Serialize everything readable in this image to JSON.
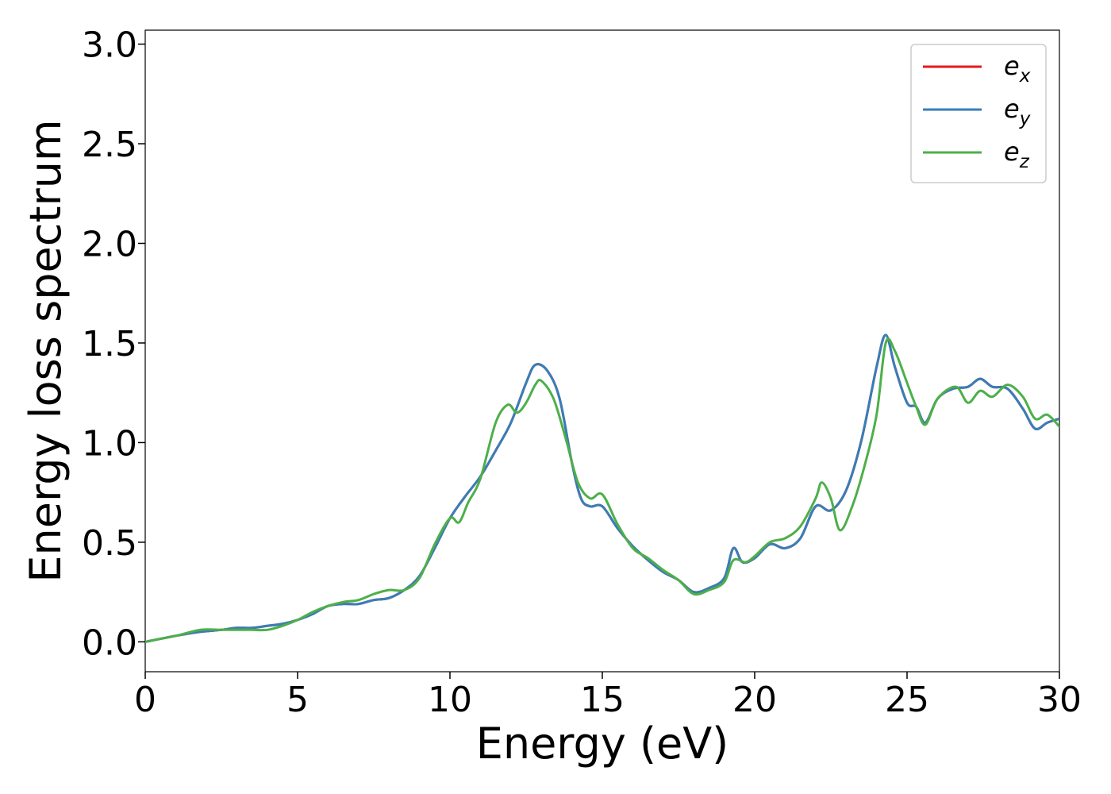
{
  "chart_data": {
    "type": "line",
    "xlabel": "Energy (eV)",
    "ylabel": "Energy loss spectrum",
    "xlim": [
      0,
      30
    ],
    "ylim": [
      -0.15,
      3.07
    ],
    "xticks": [
      0,
      5,
      10,
      15,
      20,
      25,
      30
    ],
    "xtick_labels": [
      "0",
      "5",
      "10",
      "15",
      "20",
      "25",
      "30"
    ],
    "yticks": [
      0.0,
      0.5,
      1.0,
      1.5,
      2.0,
      2.5,
      3.0
    ],
    "ytick_labels": [
      "0.0",
      "0.5",
      "1.0",
      "1.5",
      "2.0",
      "2.5",
      "3.0"
    ],
    "grid": false,
    "legend_position": "top-right",
    "series": [
      {
        "name": "e",
        "subscript": "x",
        "color": "#e41a1c",
        "x": [
          0,
          1,
          1.8,
          2.5,
          3,
          3.5,
          4,
          4.5,
          5,
          5.5,
          6,
          6.5,
          7,
          7.5,
          8,
          8.5,
          9,
          9.5,
          10,
          10.5,
          11,
          11.5,
          12,
          12.5,
          12.8,
          13.2,
          13.6,
          14,
          14.3,
          14.6,
          15,
          15.5,
          16,
          16.5,
          17,
          17.5,
          18,
          18.5,
          19,
          19.3,
          19.6,
          20,
          20.5,
          21,
          21.5,
          22,
          22.5,
          23,
          23.5,
          24,
          24.3,
          24.6,
          25,
          25.3,
          25.6,
          26,
          26.5,
          27,
          27.4,
          27.8,
          28.3,
          28.8,
          29.2,
          29.6,
          30
        ],
        "y": [
          0.0,
          0.03,
          0.05,
          0.06,
          0.07,
          0.07,
          0.08,
          0.09,
          0.11,
          0.14,
          0.18,
          0.19,
          0.19,
          0.21,
          0.22,
          0.26,
          0.33,
          0.47,
          0.62,
          0.73,
          0.83,
          0.96,
          1.1,
          1.3,
          1.39,
          1.36,
          1.22,
          0.9,
          0.72,
          0.68,
          0.68,
          0.57,
          0.48,
          0.41,
          0.35,
          0.31,
          0.25,
          0.27,
          0.32,
          0.47,
          0.4,
          0.42,
          0.49,
          0.47,
          0.52,
          0.68,
          0.66,
          0.76,
          1.01,
          1.38,
          1.54,
          1.38,
          1.2,
          1.18,
          1.1,
          1.22,
          1.27,
          1.28,
          1.32,
          1.28,
          1.27,
          1.17,
          1.07,
          1.1,
          1.12
        ]
      },
      {
        "name": "e",
        "subscript": "y",
        "color": "#377eb8",
        "x": [
          0,
          1,
          1.8,
          2.5,
          3,
          3.5,
          4,
          4.5,
          5,
          5.5,
          6,
          6.5,
          7,
          7.5,
          8,
          8.5,
          9,
          9.5,
          10,
          10.5,
          11,
          11.5,
          12,
          12.5,
          12.8,
          13.2,
          13.6,
          14,
          14.3,
          14.6,
          15,
          15.5,
          16,
          16.5,
          17,
          17.5,
          18,
          18.5,
          19,
          19.3,
          19.6,
          20,
          20.5,
          21,
          21.5,
          22,
          22.5,
          23,
          23.5,
          24,
          24.3,
          24.6,
          25,
          25.3,
          25.6,
          26,
          26.5,
          27,
          27.4,
          27.8,
          28.3,
          28.8,
          29.2,
          29.6,
          30
        ],
        "y": [
          0.0,
          0.03,
          0.05,
          0.06,
          0.07,
          0.07,
          0.08,
          0.09,
          0.11,
          0.14,
          0.18,
          0.19,
          0.19,
          0.21,
          0.22,
          0.26,
          0.33,
          0.47,
          0.62,
          0.73,
          0.83,
          0.96,
          1.1,
          1.3,
          1.39,
          1.36,
          1.22,
          0.9,
          0.72,
          0.68,
          0.68,
          0.57,
          0.48,
          0.41,
          0.35,
          0.31,
          0.25,
          0.27,
          0.32,
          0.47,
          0.4,
          0.42,
          0.49,
          0.47,
          0.52,
          0.68,
          0.66,
          0.76,
          1.01,
          1.38,
          1.54,
          1.38,
          1.2,
          1.18,
          1.1,
          1.22,
          1.27,
          1.28,
          1.32,
          1.28,
          1.27,
          1.17,
          1.07,
          1.1,
          1.12
        ]
      },
      {
        "name": "e",
        "subscript": "z",
        "color": "#4daf4a",
        "x": [
          0,
          1,
          1.8,
          2.5,
          3,
          3.5,
          4,
          4.5,
          5,
          5.5,
          6,
          6.5,
          7,
          7.5,
          8,
          8.5,
          9,
          9.5,
          10,
          10.3,
          10.6,
          11,
          11.5,
          11.9,
          12.2,
          12.5,
          12.8,
          13,
          13.4,
          13.8,
          14.2,
          14.6,
          15,
          15.5,
          16,
          16.5,
          17,
          17.5,
          18,
          18.5,
          19,
          19.3,
          19.7,
          20,
          20.5,
          21,
          21.5,
          22,
          22.2,
          22.5,
          22.8,
          23.2,
          23.6,
          24,
          24.3,
          24.6,
          25,
          25.3,
          25.6,
          26,
          26.6,
          27,
          27.4,
          27.8,
          28.3,
          28.8,
          29.2,
          29.6,
          30
        ],
        "y": [
          0.0,
          0.03,
          0.06,
          0.06,
          0.06,
          0.06,
          0.06,
          0.08,
          0.11,
          0.15,
          0.18,
          0.2,
          0.21,
          0.24,
          0.26,
          0.26,
          0.32,
          0.49,
          0.62,
          0.6,
          0.7,
          0.82,
          1.1,
          1.19,
          1.15,
          1.2,
          1.29,
          1.31,
          1.22,
          1.02,
          0.8,
          0.72,
          0.74,
          0.59,
          0.47,
          0.42,
          0.36,
          0.31,
          0.24,
          0.26,
          0.3,
          0.41,
          0.4,
          0.43,
          0.5,
          0.52,
          0.58,
          0.72,
          0.8,
          0.72,
          0.56,
          0.68,
          0.88,
          1.14,
          1.5,
          1.46,
          1.3,
          1.18,
          1.09,
          1.22,
          1.28,
          1.2,
          1.26,
          1.23,
          1.29,
          1.23,
          1.12,
          1.14,
          1.08
        ]
      }
    ]
  }
}
